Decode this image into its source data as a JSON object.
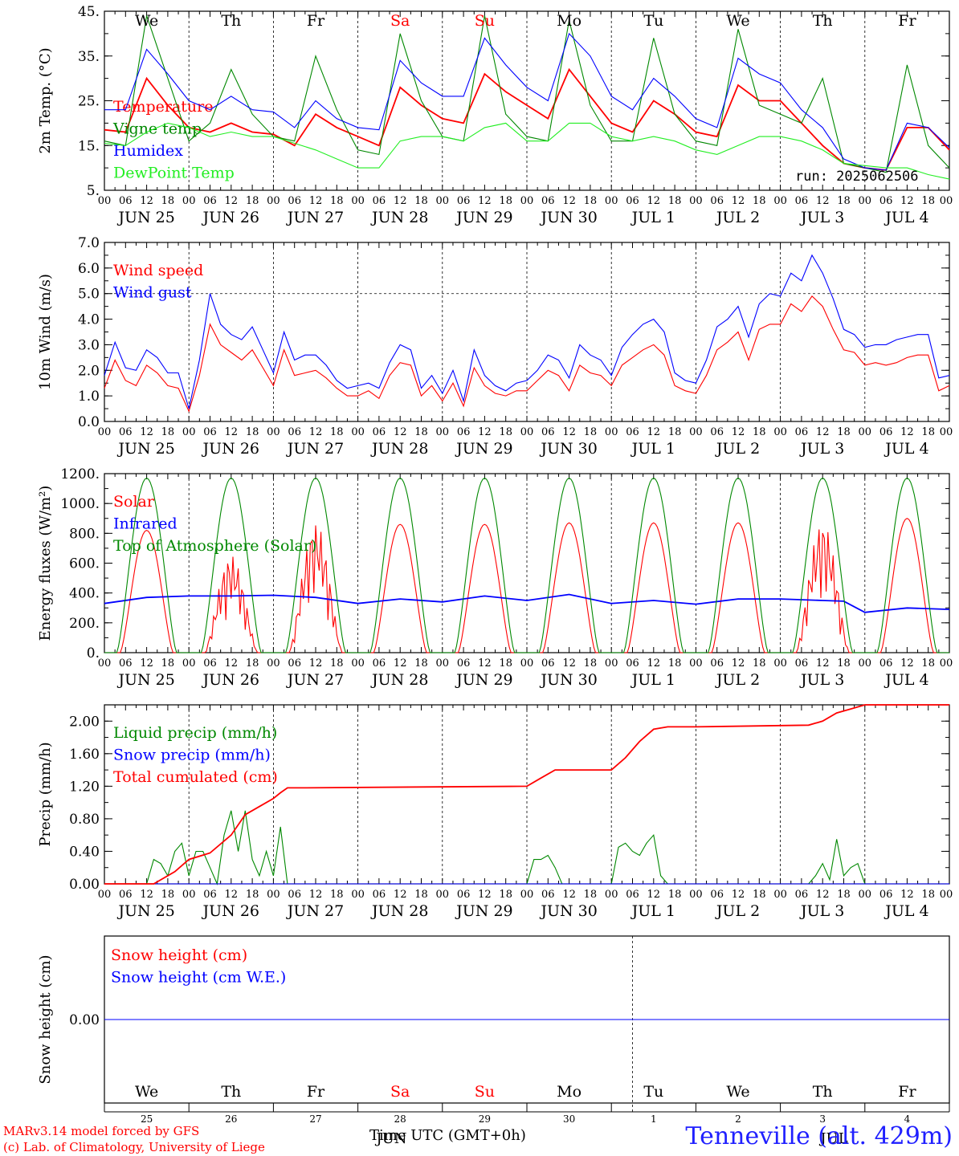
{
  "colors": {
    "red": "#ff0000",
    "green": "#008800",
    "blue": "#0000ff",
    "lightgreen": "#22ee22",
    "black": "#000000"
  },
  "days": [
    "We",
    "Th",
    "Fr",
    "Sa",
    "Su",
    "Mo",
    "Tu",
    "We",
    "Th",
    "Fr"
  ],
  "weekend_days": [
    "Sa",
    "Su"
  ],
  "date_labels": [
    "JUN 25",
    "JUN 26",
    "JUN 27",
    "JUN 28",
    "JUN 29",
    "JUN 30",
    "JUL  1",
    "JUL  2",
    "JUL  3",
    "JUL  4"
  ],
  "hour_ticks": [
    "00",
    "06",
    "12",
    "18"
  ],
  "last_hour_tick": "00",
  "snow_day_numbers": [
    "25",
    "26",
    "27",
    "28",
    "29",
    "30",
    "1",
    "2",
    "3",
    "4"
  ],
  "snow_month_labels": [
    "JUN",
    "JUL"
  ],
  "run_label": "run: 2025062506",
  "footer": {
    "model_line": "MARv3.14 model forced by GFS",
    "lab_line": "(c) Lab. of Climatology, University of Liege",
    "station": "Tenneville (alt. 429m)",
    "x_title": "Time UTC (GMT+0h)"
  },
  "chart_data": [
    {
      "type": "line",
      "ylabel": "2m Temp. (°C)",
      "ylim": [
        5,
        45
      ],
      "ytick_labels": [
        "5.",
        "15.",
        "25.",
        "35.",
        "45."
      ],
      "x_unit": "hours since JUN 25 00 UTC",
      "series": [
        {
          "name": "Temperature",
          "color": "red",
          "x": [
            0,
            6,
            12,
            18,
            24,
            30,
            36,
            42,
            48,
            54,
            60,
            66,
            72,
            78,
            84,
            90,
            96,
            102,
            108,
            114,
            120,
            126,
            132,
            138,
            144,
            150,
            156,
            162,
            168,
            174,
            180,
            186,
            192,
            198,
            204,
            210,
            216,
            222,
            228,
            234,
            240
          ],
          "y": [
            18.5,
            18,
            30,
            24,
            19,
            18,
            20,
            18,
            17.5,
            15,
            22,
            19,
            17,
            15,
            28,
            24,
            21,
            20,
            31,
            27,
            24,
            21,
            32,
            26,
            20,
            18,
            25,
            22,
            18,
            17,
            28.5,
            25,
            25,
            20,
            15,
            11,
            10,
            9.5,
            19,
            19,
            14
          ]
        },
        {
          "name": "Vigne temp",
          "color": "green",
          "x": [
            0,
            6,
            12,
            18,
            24,
            30,
            36,
            42,
            48,
            54,
            60,
            66,
            72,
            78,
            84,
            90,
            96,
            102,
            108,
            114,
            120,
            126,
            132,
            138,
            144,
            150,
            156,
            162,
            168,
            174,
            180,
            186,
            192,
            198,
            204,
            210,
            216,
            222,
            228,
            234,
            240
          ],
          "y": [
            16,
            15,
            44,
            30,
            16,
            20,
            32,
            22,
            17,
            16,
            35,
            23,
            14,
            13,
            40,
            25,
            17,
            16,
            44,
            22,
            17,
            16,
            43,
            24,
            16,
            16,
            39,
            22,
            16,
            15,
            41,
            24,
            22,
            20,
            30,
            11,
            10,
            9,
            33,
            15,
            10
          ]
        },
        {
          "name": "Humidex",
          "color": "blue",
          "x": [
            0,
            6,
            12,
            18,
            24,
            30,
            36,
            42,
            48,
            54,
            60,
            66,
            72,
            78,
            84,
            90,
            96,
            102,
            108,
            114,
            120,
            126,
            132,
            138,
            144,
            150,
            156,
            162,
            168,
            174,
            180,
            186,
            192,
            198,
            204,
            210,
            216,
            222,
            228,
            234,
            240
          ],
          "y": [
            23,
            23,
            36.5,
            31,
            25,
            23,
            26,
            23,
            22.5,
            19,
            25,
            21,
            19,
            18.5,
            34,
            29,
            26,
            26,
            39,
            33,
            28,
            25,
            40,
            35,
            26,
            23,
            30,
            26,
            21,
            19,
            34.5,
            31,
            29,
            23,
            19,
            12,
            10,
            9.5,
            20,
            19,
            14.5
          ]
        },
        {
          "name": "DewPoint Temp",
          "color": "lightgreen",
          "x": [
            0,
            6,
            12,
            18,
            24,
            30,
            36,
            42,
            48,
            54,
            60,
            66,
            72,
            78,
            84,
            90,
            96,
            102,
            108,
            114,
            120,
            126,
            132,
            138,
            144,
            150,
            156,
            162,
            168,
            174,
            180,
            186,
            192,
            198,
            204,
            210,
            216,
            222,
            228,
            234,
            240
          ],
          "y": [
            15.5,
            15,
            18,
            20,
            19,
            17,
            18,
            17,
            17,
            15.5,
            14,
            12,
            10,
            10,
            16,
            17,
            17,
            16,
            19,
            20,
            16,
            16,
            20,
            20,
            17,
            16,
            17,
            16,
            14,
            13,
            15,
            17,
            17,
            16,
            14,
            11,
            10.5,
            10,
            10,
            8.5,
            7.5
          ]
        }
      ]
    },
    {
      "type": "line",
      "ylabel": "10m Wind (m/s)",
      "ylim": [
        0,
        7
      ],
      "ytick_labels": [
        "0.0",
        "1.0",
        "2.0",
        "3.0",
        "4.0",
        "5.0",
        "6.0",
        "7.0"
      ],
      "x_unit": "hours since JUN 25 00 UTC",
      "series": [
        {
          "name": "Wind speed",
          "color": "red",
          "x": [
            0,
            3,
            6,
            9,
            12,
            15,
            18,
            21,
            24,
            27,
            30,
            33,
            36,
            39,
            42,
            45,
            48,
            51,
            54,
            57,
            60,
            63,
            66,
            69,
            72,
            75,
            78,
            81,
            84,
            87,
            90,
            93,
            96,
            99,
            102,
            105,
            108,
            111,
            114,
            117,
            120,
            123,
            126,
            129,
            132,
            135,
            138,
            141,
            144,
            147,
            150,
            153,
            156,
            159,
            162,
            165,
            168,
            171,
            174,
            177,
            180,
            183,
            186,
            189,
            192,
            195,
            198,
            201,
            204,
            207,
            210,
            213,
            216,
            219,
            222,
            225,
            228,
            231,
            234,
            237,
            240
          ],
          "y": [
            1.3,
            2.4,
            1.6,
            1.4,
            2.2,
            1.9,
            1.4,
            1.3,
            0.4,
            1.8,
            3.8,
            3.0,
            2.7,
            2.4,
            2.8,
            2.1,
            1.4,
            2.8,
            1.8,
            1.9,
            2.0,
            1.7,
            1.3,
            1.0,
            1.0,
            1.2,
            0.9,
            1.8,
            2.3,
            2.2,
            1.0,
            1.4,
            0.8,
            1.5,
            0.6,
            2.1,
            1.4,
            1.1,
            1.0,
            1.2,
            1.2,
            1.6,
            2.0,
            1.8,
            1.2,
            2.2,
            1.9,
            1.8,
            1.4,
            2.2,
            2.5,
            2.8,
            3.0,
            2.6,
            1.4,
            1.2,
            1.1,
            1.8,
            2.8,
            3.1,
            3.5,
            2.4,
            3.6,
            3.8,
            3.8,
            4.6,
            4.3,
            4.9,
            4.5,
            3.6,
            2.8,
            2.7,
            2.2,
            2.3,
            2.2,
            2.3,
            2.5,
            2.6,
            2.6,
            1.2,
            1.4
          ]
        },
        {
          "name": "Wind gust",
          "color": "blue",
          "x": [
            0,
            3,
            6,
            9,
            12,
            15,
            18,
            21,
            24,
            27,
            30,
            33,
            36,
            39,
            42,
            45,
            48,
            51,
            54,
            57,
            60,
            63,
            66,
            69,
            72,
            75,
            78,
            81,
            84,
            87,
            90,
            93,
            96,
            99,
            102,
            105,
            108,
            111,
            114,
            117,
            120,
            123,
            126,
            129,
            132,
            135,
            138,
            141,
            144,
            147,
            150,
            153,
            156,
            159,
            162,
            165,
            168,
            171,
            174,
            177,
            180,
            183,
            186,
            189,
            192,
            195,
            198,
            201,
            204,
            207,
            210,
            213,
            216,
            219,
            222,
            225,
            228,
            231,
            234,
            237,
            240
          ],
          "y": [
            1.8,
            3.1,
            2.1,
            2.0,
            2.8,
            2.5,
            1.9,
            1.9,
            0.5,
            2.4,
            5.0,
            3.8,
            3.4,
            3.2,
            3.7,
            2.8,
            1.9,
            3.5,
            2.4,
            2.6,
            2.6,
            2.2,
            1.6,
            1.3,
            1.4,
            1.5,
            1.3,
            2.3,
            3.0,
            2.8,
            1.3,
            1.8,
            1.1,
            2.0,
            0.8,
            2.8,
            1.8,
            1.4,
            1.2,
            1.5,
            1.6,
            2.0,
            2.6,
            2.4,
            1.7,
            3.0,
            2.6,
            2.4,
            1.8,
            2.9,
            3.4,
            3.8,
            4.0,
            3.5,
            1.9,
            1.6,
            1.5,
            2.4,
            3.7,
            4.0,
            4.5,
            3.3,
            4.6,
            5.0,
            4.9,
            5.8,
            5.5,
            6.5,
            5.8,
            4.8,
            3.6,
            3.4,
            2.9,
            3.0,
            3.0,
            3.2,
            3.3,
            3.4,
            3.4,
            1.7,
            1.8
          ]
        }
      ],
      "reference_line": 5.0
    },
    {
      "type": "line",
      "ylabel": "Energy fluxes (W/m²)",
      "ylim": [
        0,
        1200
      ],
      "ytick_labels": [
        "0.",
        "200.",
        "400.",
        "600.",
        "800.",
        "1000.",
        "1200."
      ],
      "x_unit": "hours since JUN 25 00 UTC",
      "series": [
        {
          "name": "Solar",
          "color": "red",
          "shape": "daily_bell",
          "daily_peaks": [
            820,
            650,
            870,
            860,
            860,
            870,
            870,
            870,
            880,
            900
          ],
          "noisy_days": [
            1,
            2,
            8
          ]
        },
        {
          "name": "Infrared",
          "color": "blue",
          "x": [
            0,
            12,
            24,
            36,
            48,
            60,
            72,
            84,
            96,
            108,
            120,
            132,
            144,
            156,
            168,
            180,
            192,
            204,
            210,
            216,
            228,
            240
          ],
          "y": [
            330,
            370,
            380,
            380,
            385,
            370,
            330,
            360,
            340,
            380,
            350,
            390,
            330,
            350,
            325,
            360,
            360,
            350,
            345,
            270,
            300,
            290
          ]
        },
        {
          "name": "Top of Atmosphere (Solar)",
          "color": "green",
          "shape": "daily_bell",
          "daily_peaks": [
            1170,
            1170,
            1170,
            1170,
            1170,
            1170,
            1170,
            1170,
            1170,
            1170
          ]
        }
      ]
    },
    {
      "type": "line",
      "ylabel": "Precip (mm/h)",
      "ylim": [
        0,
        2.2
      ],
      "ytick_labels": [
        "0.00",
        "0.40",
        "0.80",
        "1.20",
        "1.60",
        "2.00"
      ],
      "x_unit": "hours since JUN 25 00 UTC",
      "series": [
        {
          "name": "Liquid precip (mm/h)",
          "color": "green",
          "x": [
            0,
            12,
            14,
            16,
            18,
            20,
            22,
            24,
            26,
            28,
            30,
            32,
            34,
            36,
            38,
            40,
            42,
            44,
            46,
            48,
            50,
            52,
            120,
            122,
            124,
            126,
            128,
            130,
            144,
            146,
            148,
            150,
            152,
            154,
            156,
            158,
            160,
            200,
            202,
            204,
            206,
            208,
            210,
            212,
            214,
            216
          ],
          "y": [
            0,
            0,
            0.3,
            0.25,
            0.1,
            0.4,
            0.5,
            0.1,
            0.4,
            0.4,
            0.2,
            0,
            0.6,
            0.9,
            0.4,
            0.9,
            0.3,
            0.1,
            0.4,
            0.1,
            0.7,
            0,
            0,
            0.3,
            0.3,
            0.35,
            0.2,
            0,
            0,
            0.45,
            0.5,
            0.4,
            0.35,
            0.5,
            0.6,
            0.1,
            0,
            0,
            0.1,
            0.25,
            0.05,
            0.55,
            0.1,
            0.2,
            0.25,
            0
          ]
        },
        {
          "name": "Snow precip (mm/h)",
          "color": "blue",
          "x": [
            0,
            240
          ],
          "y": [
            0,
            0
          ]
        },
        {
          "name": "Total cumulated (cm)",
          "color": "red",
          "x": [
            0,
            14,
            20,
            24,
            30,
            36,
            40,
            44,
            48,
            50,
            52,
            56,
            120,
            124,
            128,
            144,
            148,
            152,
            156,
            160,
            168,
            200,
            204,
            208,
            212,
            216,
            240
          ],
          "y": [
            0,
            0,
            0.15,
            0.3,
            0.38,
            0.6,
            0.85,
            0.95,
            1.05,
            1.12,
            1.18,
            1.18,
            1.2,
            1.3,
            1.4,
            1.4,
            1.55,
            1.75,
            1.9,
            1.93,
            1.93,
            1.95,
            2.0,
            2.1,
            2.15,
            2.2,
            2.2
          ]
        }
      ]
    },
    {
      "type": "line",
      "ylabel": "Snow height (cm)",
      "ytick_labels": [
        "0.00"
      ],
      "x_unit": "hours since JUN 25 00 UTC",
      "series": [
        {
          "name": "Snow height (cm)",
          "color": "red",
          "x": [
            0,
            240
          ],
          "y": [
            0,
            0
          ]
        },
        {
          "name": "Snow height (cm W.E.)",
          "color": "blue",
          "x": [
            0,
            240
          ],
          "y": [
            0,
            0
          ]
        }
      ]
    }
  ]
}
